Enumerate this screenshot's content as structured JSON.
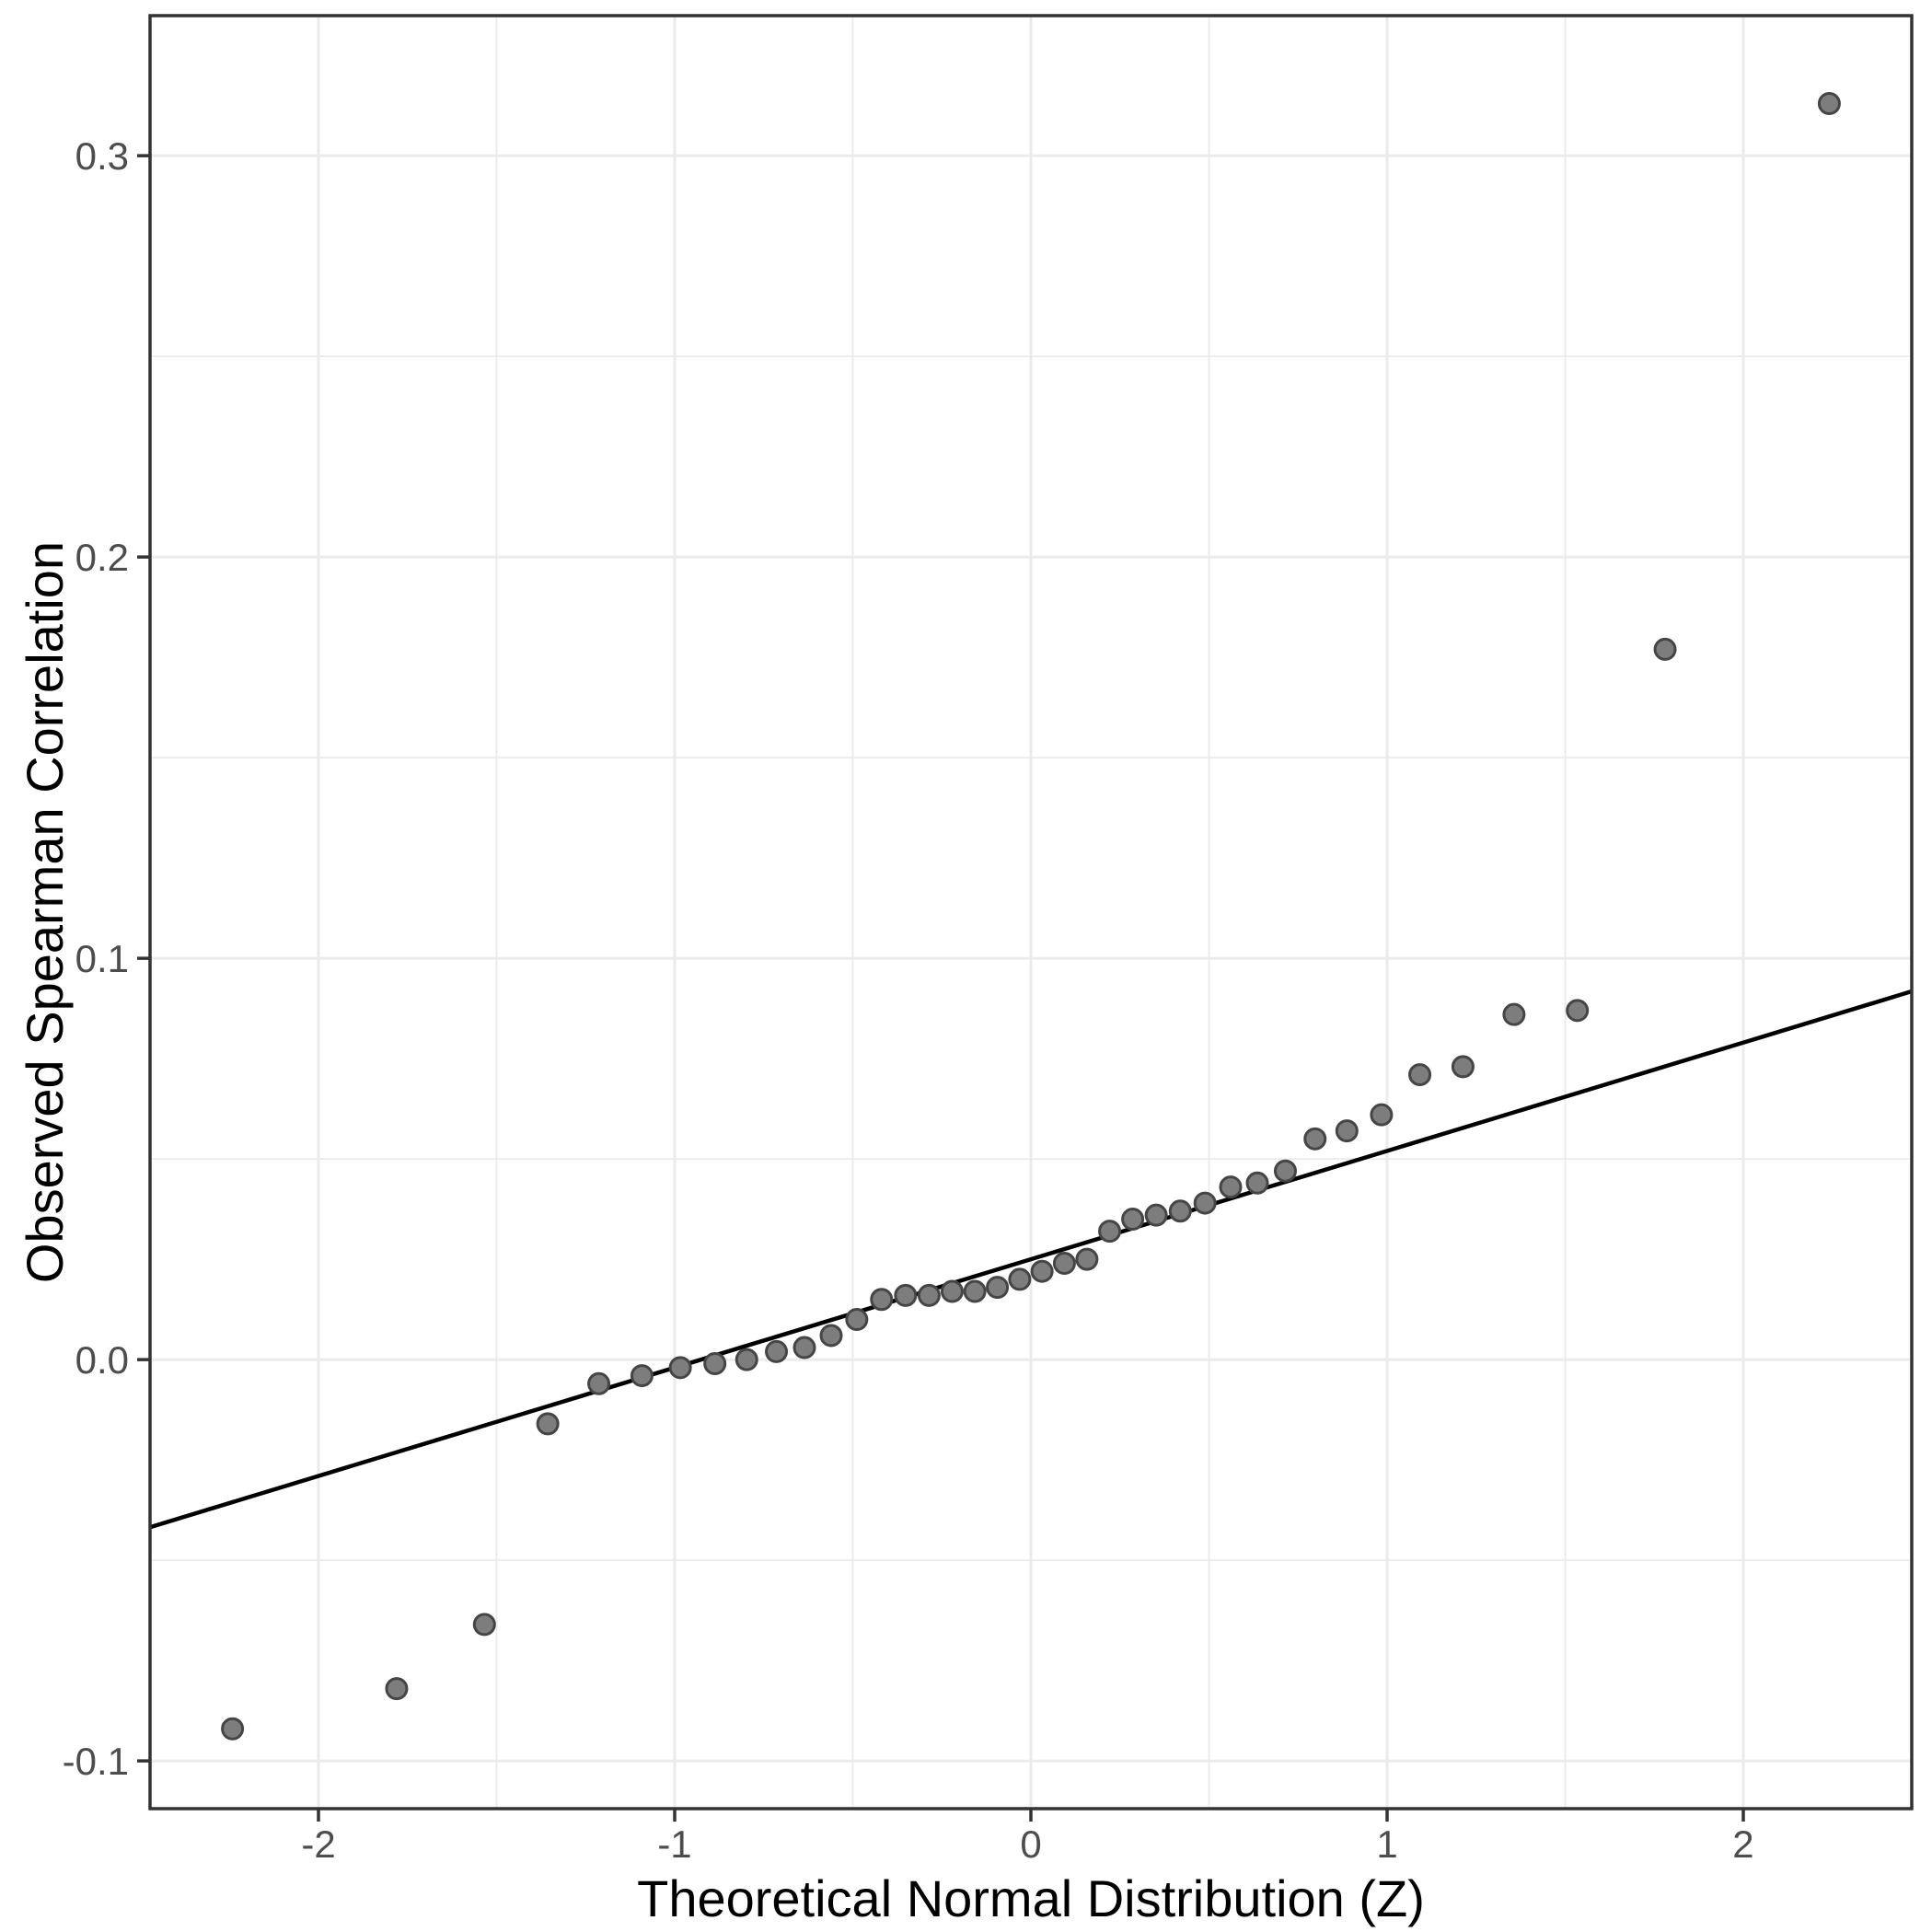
{
  "figure": {
    "background": "#ffffff"
  },
  "style": {
    "grid_color": "#ebebeb",
    "grid_major_width": 3,
    "grid_minor_width": 1.8,
    "panel_border_color": "#333333",
    "panel_border_width": 3.5,
    "tick_color": "#333333",
    "tick_length": 14,
    "tick_label_color": "#4d4d4d",
    "point_fill": "#7d7d7d",
    "point_stroke": "#454545",
    "point_radius": 11,
    "point_stroke_width": 3,
    "line_color": "#000000",
    "line_width": 4.5
  },
  "chart_data": {
    "type": "scatter",
    "subtype": "qq-plot",
    "title": "",
    "xlabel": "Theoretical Normal Distribution (Z)",
    "ylabel": "Observed Spearman Correlation",
    "xlim": [
      -2.4729,
      2.4729
    ],
    "ylim": [
      -0.1119,
      0.3349
    ],
    "grid": "on",
    "legend": "none",
    "x_ticks": [
      {
        "value": -2,
        "label": "-2"
      },
      {
        "value": -1,
        "label": "-1"
      },
      {
        "value": 0,
        "label": "0"
      },
      {
        "value": 1,
        "label": "1"
      },
      {
        "value": 2,
        "label": "2"
      }
    ],
    "x_minor_gridlines": [
      -1.5,
      -0.5,
      0.5,
      1.5
    ],
    "y_ticks": [
      {
        "value": -0.1,
        "label": "-0.1"
      },
      {
        "value": 0.0,
        "label": "0.0"
      },
      {
        "value": 0.1,
        "label": "0.1"
      },
      {
        "value": 0.2,
        "label": "0.2"
      },
      {
        "value": 0.3,
        "label": "0.3"
      }
    ],
    "y_minor_gridlines": [
      -0.05,
      0.05,
      0.15,
      0.25
    ],
    "points": [
      [
        -2.2414,
        -0.092
      ],
      [
        -1.7805,
        -0.082
      ],
      [
        -1.5341,
        -0.066
      ],
      [
        -1.3563,
        -0.016
      ],
      [
        -1.213,
        -0.006
      ],
      [
        -1.0919,
        -0.004
      ],
      [
        -0.9842,
        -0.002
      ],
      [
        -0.8871,
        -0.001
      ],
      [
        -0.7978,
        0.0
      ],
      [
        -0.7144,
        0.002
      ],
      [
        -0.6357,
        0.003
      ],
      [
        -0.5607,
        0.006
      ],
      [
        -0.4888,
        0.01
      ],
      [
        -0.4193,
        0.015
      ],
      [
        -0.3518,
        0.016
      ],
      [
        -0.2858,
        0.016
      ],
      [
        -0.2211,
        0.017
      ],
      [
        -0.1573,
        0.017
      ],
      [
        -0.0941,
        0.018
      ],
      [
        -0.0313,
        0.02
      ],
      [
        0.0313,
        0.022
      ],
      [
        0.0941,
        0.024
      ],
      [
        0.1573,
        0.025
      ],
      [
        0.2211,
        0.032
      ],
      [
        0.2858,
        0.035
      ],
      [
        0.3518,
        0.036
      ],
      [
        0.4193,
        0.037
      ],
      [
        0.4888,
        0.039
      ],
      [
        0.5607,
        0.043
      ],
      [
        0.6357,
        0.044
      ],
      [
        0.7144,
        0.047
      ],
      [
        0.7978,
        0.055
      ],
      [
        0.8871,
        0.057
      ],
      [
        0.9842,
        0.061
      ],
      [
        1.0919,
        0.071
      ],
      [
        1.213,
        0.073
      ],
      [
        1.3563,
        0.086
      ],
      [
        1.5341,
        0.087
      ],
      [
        1.7805,
        0.177
      ],
      [
        2.2414,
        0.313
      ]
    ],
    "reference_line": {
      "type": "qq-line",
      "slope": 0.027,
      "intercept": 0.025
    }
  }
}
